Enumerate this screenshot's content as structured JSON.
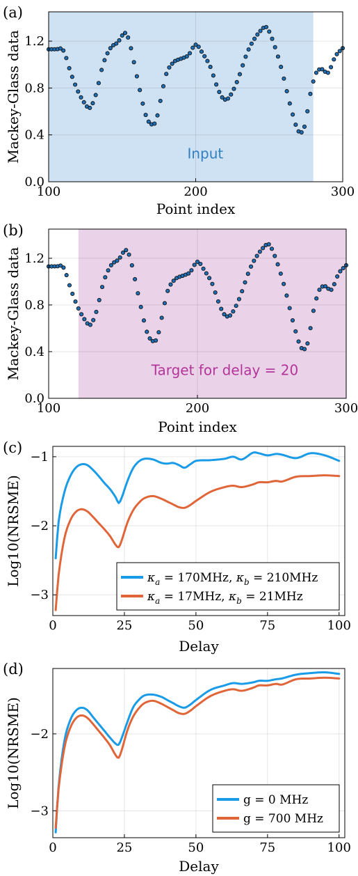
{
  "chart_data": [
    {
      "panel": "(a)",
      "type": "scatter",
      "xlabel": "Point index",
      "ylabel": "Mackey-Glass data",
      "xlim": [
        100,
        300
      ],
      "ylim": [
        0.0,
        1.45
      ],
      "xticks": [
        "100",
        "200",
        "300"
      ],
      "yticks": [
        "0.0",
        "0.4",
        "0.8",
        "1.2"
      ],
      "region": {
        "label": "Input",
        "from": 100,
        "to": 280,
        "color": "#cfe2f3",
        "text_color": "#2f7fc1"
      },
      "marker_color": "#1d6fb8",
      "series_ref": "mackey_glass"
    },
    {
      "panel": "(b)",
      "type": "scatter",
      "xlabel": "Point index",
      "ylabel": "Mackey-Glass data",
      "xlim": [
        100,
        300
      ],
      "ylim": [
        0.0,
        1.45
      ],
      "xticks": [
        "100",
        "200",
        "300"
      ],
      "yticks": [
        "0.0",
        "0.4",
        "0.8",
        "1.2"
      ],
      "region": {
        "label": "Target for delay = 20",
        "from": 120,
        "to": 300,
        "color": "#ead3e8",
        "text_color": "#b3359a"
      },
      "marker_color": "#1d6fb8",
      "series_ref": "mackey_glass"
    },
    {
      "panel": "(c)",
      "type": "line",
      "xlabel": "Delay",
      "ylabel": "Log10(NRSME)",
      "xlim": [
        0,
        102
      ],
      "ylim": [
        -3.3,
        -0.85
      ],
      "xticks": [
        "0",
        "25",
        "50",
        "75",
        "100"
      ],
      "yticks": [
        "-3",
        "-2",
        "-1"
      ],
      "legend_position": "bottom-right",
      "series": [
        {
          "name": "κ_a = 170MHz, κ_b = 210MHz",
          "legend_main": "κ",
          "legend_parts": [
            "a",
            " = 170MHz, ",
            "κ",
            "b",
            " = 210MHz"
          ],
          "color": "#1a9be8",
          "x": [
            1,
            2,
            4,
            6,
            8,
            10,
            12,
            14,
            16,
            18,
            20,
            22,
            23,
            24,
            26,
            28,
            30,
            32,
            35,
            38,
            40,
            42,
            44,
            46,
            48,
            50,
            55,
            60,
            63,
            66,
            70,
            72,
            75,
            78,
            80,
            85,
            90,
            95,
            100
          ],
          "y": [
            -2.47,
            -1.95,
            -1.52,
            -1.29,
            -1.16,
            -1.11,
            -1.12,
            -1.19,
            -1.28,
            -1.38,
            -1.47,
            -1.59,
            -1.67,
            -1.6,
            -1.36,
            -1.17,
            -1.07,
            -1.03,
            -1.04,
            -1.09,
            -1.1,
            -1.09,
            -1.12,
            -1.16,
            -1.11,
            -1.06,
            -1.05,
            -1.03,
            -1.0,
            -1.04,
            -0.94,
            -0.95,
            -0.98,
            -0.96,
            -0.97,
            -1.02,
            -0.95,
            -0.98,
            -1.06
          ]
        },
        {
          "name": "κ_a = 17MHz, κ_b = 21MHz",
          "legend_main": "κ",
          "legend_parts": [
            "a",
            " = 17MHz, ",
            "κ",
            "b",
            " = 21MHz"
          ],
          "color": "#e0663a",
          "x": [
            1,
            2,
            4,
            6,
            8,
            10,
            12,
            14,
            16,
            18,
            20,
            22,
            23,
            24,
            26,
            28,
            30,
            32,
            35,
            38,
            40,
            42,
            44,
            46,
            48,
            50,
            55,
            60,
            63,
            66,
            70,
            72,
            75,
            78,
            80,
            85,
            90,
            95,
            100
          ],
          "y": [
            -3.22,
            -2.72,
            -2.19,
            -1.93,
            -1.8,
            -1.76,
            -1.79,
            -1.87,
            -1.96,
            -2.05,
            -2.15,
            -2.28,
            -2.31,
            -2.22,
            -1.96,
            -1.78,
            -1.67,
            -1.6,
            -1.57,
            -1.61,
            -1.65,
            -1.69,
            -1.73,
            -1.74,
            -1.7,
            -1.64,
            -1.51,
            -1.44,
            -1.42,
            -1.44,
            -1.4,
            -1.37,
            -1.37,
            -1.35,
            -1.36,
            -1.29,
            -1.28,
            -1.27,
            -1.28
          ]
        }
      ]
    },
    {
      "panel": "(d)",
      "type": "line",
      "xlabel": "Delay",
      "ylabel": "Log10(NRSME)",
      "xlim": [
        0,
        102
      ],
      "ylim": [
        -3.35,
        -1.15
      ],
      "xticks": [
        "0",
        "25",
        "50",
        "75",
        "100"
      ],
      "yticks": [
        "-3",
        "-2"
      ],
      "legend_position": "bottom-right",
      "series": [
        {
          "name": "g = 0 MHz",
          "legend_parts": [
            "g = 0 MHz"
          ],
          "color": "#1a9be8",
          "x": [
            1,
            2,
            4,
            6,
            8,
            10,
            12,
            14,
            16,
            18,
            20,
            22,
            23,
            24,
            26,
            28,
            30,
            32,
            35,
            38,
            40,
            42,
            44,
            46,
            48,
            50,
            55,
            60,
            63,
            66,
            70,
            72,
            75,
            78,
            80,
            85,
            90,
            95,
            100
          ],
          "y": [
            -3.28,
            -2.69,
            -2.1,
            -1.83,
            -1.7,
            -1.66,
            -1.69,
            -1.78,
            -1.87,
            -1.96,
            -2.05,
            -2.13,
            -2.14,
            -2.06,
            -1.85,
            -1.66,
            -1.56,
            -1.5,
            -1.49,
            -1.52,
            -1.56,
            -1.6,
            -1.64,
            -1.66,
            -1.62,
            -1.56,
            -1.43,
            -1.37,
            -1.34,
            -1.35,
            -1.33,
            -1.31,
            -1.31,
            -1.29,
            -1.28,
            -1.23,
            -1.21,
            -1.2,
            -1.22
          ]
        },
        {
          "name": "g = 700 MHz",
          "legend_parts": [
            "g = 700 MHz"
          ],
          "color": "#e0663a",
          "x": [
            1,
            2,
            4,
            6,
            8,
            10,
            12,
            14,
            16,
            18,
            20,
            22,
            23,
            24,
            26,
            28,
            30,
            32,
            35,
            38,
            40,
            42,
            44,
            46,
            48,
            50,
            55,
            60,
            63,
            66,
            70,
            72,
            75,
            78,
            80,
            85,
            90,
            95,
            100
          ],
          "y": [
            -3.22,
            -2.72,
            -2.19,
            -1.93,
            -1.8,
            -1.76,
            -1.79,
            -1.87,
            -1.96,
            -2.05,
            -2.15,
            -2.28,
            -2.31,
            -2.22,
            -1.96,
            -1.78,
            -1.67,
            -1.6,
            -1.57,
            -1.61,
            -1.65,
            -1.69,
            -1.73,
            -1.74,
            -1.7,
            -1.64,
            -1.51,
            -1.44,
            -1.42,
            -1.44,
            -1.4,
            -1.37,
            -1.37,
            -1.35,
            -1.36,
            -1.29,
            -1.28,
            -1.27,
            -1.28
          ]
        }
      ]
    }
  ],
  "mackey_glass": {
    "x": [
      100,
      105,
      110,
      115,
      120,
      125,
      128,
      132,
      137,
      142,
      147,
      152,
      155,
      160,
      166,
      170,
      173,
      176,
      180,
      185,
      190,
      195,
      200,
      205,
      210,
      214,
      218,
      222,
      228,
      235,
      240,
      245,
      248,
      252,
      258,
      265,
      270,
      274,
      278,
      282,
      286,
      290,
      295,
      300
    ],
    "y": [
      1.13,
      1.13,
      1.12,
      0.93,
      0.77,
      0.66,
      0.63,
      0.74,
      1.0,
      1.14,
      1.19,
      1.27,
      1.19,
      0.9,
      0.57,
      0.49,
      0.52,
      0.69,
      0.92,
      1.02,
      1.05,
      1.08,
      1.17,
      1.09,
      0.98,
      0.83,
      0.72,
      0.71,
      0.85,
      1.1,
      1.22,
      1.3,
      1.32,
      1.22,
      0.98,
      0.62,
      0.43,
      0.47,
      0.75,
      0.93,
      0.96,
      0.93,
      1.07,
      1.14
    ],
    "sample_step": 2
  }
}
